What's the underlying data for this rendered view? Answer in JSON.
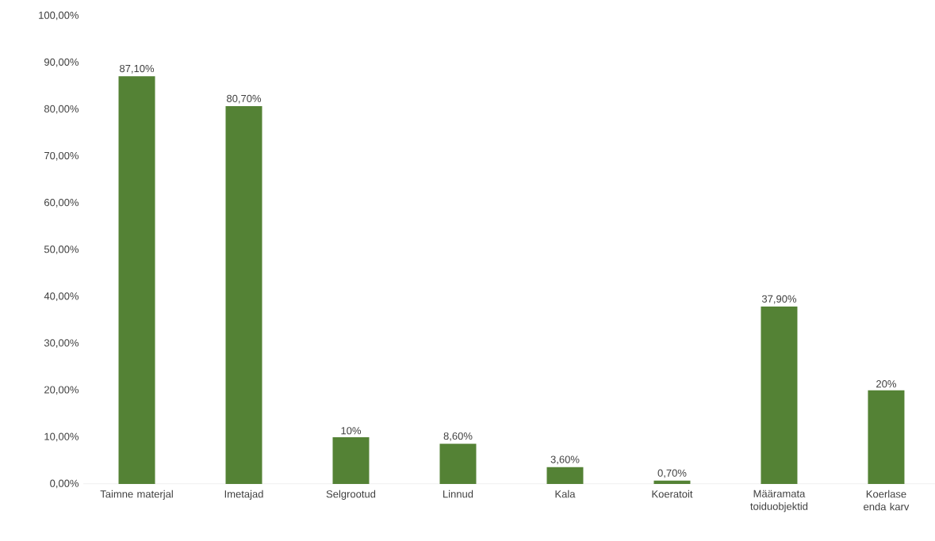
{
  "chart_data": {
    "type": "bar",
    "categories": [
      "Taimne materjal",
      "Imetajad",
      "Selgrootud",
      "Linnud",
      "Kala",
      "Koeratoit",
      "Määramata toiduobjektid",
      "Koerlase enda karv"
    ],
    "values": [
      87.1,
      80.7,
      10,
      8.6,
      3.6,
      0.7,
      37.9,
      20
    ],
    "value_labels": [
      "87,10%",
      "80,70%",
      "10%",
      "8,60%",
      "3,60%",
      "0,70%",
      "37,90%",
      "20%"
    ],
    "color": "#548235",
    "ylim": [
      0,
      100
    ],
    "yticks": [
      {
        "value": 0,
        "label": "0,00%"
      },
      {
        "value": 10,
        "label": "10,00%"
      },
      {
        "value": 20,
        "label": "20,00%"
      },
      {
        "value": 30,
        "label": "30,00%"
      },
      {
        "value": 40,
        "label": "40,00%"
      },
      {
        "value": 50,
        "label": "50,00%"
      },
      {
        "value": 60,
        "label": "60,00%"
      },
      {
        "value": 70,
        "label": "70,00%"
      },
      {
        "value": 80,
        "label": "80,00%"
      },
      {
        "value": 90,
        "label": "90,00%"
      },
      {
        "value": 100,
        "label": "100,00%"
      }
    ]
  }
}
